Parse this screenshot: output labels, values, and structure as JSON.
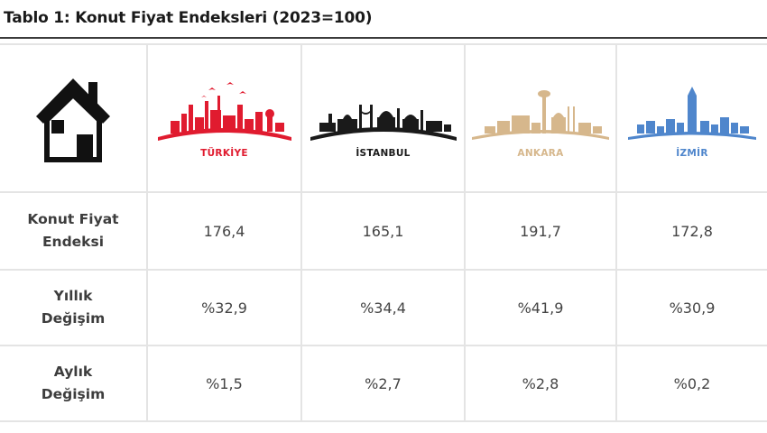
{
  "title": "Tablo 1: Konut Fiyat Endeksleri (2023=100)",
  "header": {
    "home_icon": "house-icon",
    "cities": [
      {
        "name": "TÜRKİYE",
        "color": "#e01b2f",
        "icon": "turkiye-skyline-icon"
      },
      {
        "name": "İSTANBUL",
        "color": "#1a1a1a",
        "icon": "istanbul-skyline-icon"
      },
      {
        "name": "ANKARA",
        "color": "#d6b78c",
        "icon": "ankara-skyline-icon"
      },
      {
        "name": "İZMİR",
        "color": "#4f86cc",
        "icon": "izmir-skyline-icon"
      }
    ]
  },
  "rows": [
    {
      "label_line1": "Konut Fiyat",
      "label_line2": "Endeksi",
      "values": [
        "176,4",
        "165,1",
        "191,7",
        "172,8"
      ]
    },
    {
      "label_line1": "Yıllık",
      "label_line2": "Değişim",
      "values": [
        "%32,9",
        "%34,4",
        "%41,9",
        "%30,9"
      ]
    },
    {
      "label_line1": "Aylık",
      "label_line2": "Değişim",
      "values": [
        "%1,5",
        "%2,7",
        "%2,8",
        "%0,2"
      ]
    }
  ]
}
